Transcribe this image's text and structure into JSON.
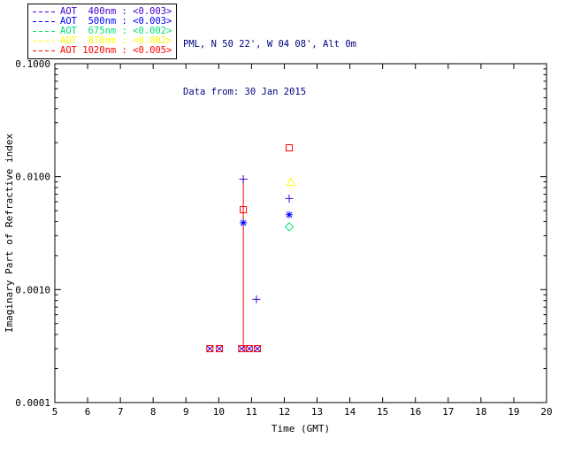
{
  "header": {
    "line1": "PML, N 50 22', W 04 08', Alt 0m",
    "line2": "Data from: 30 Jan 2015",
    "color": "#000080"
  },
  "legend": {
    "items": [
      {
        "label": "AOT  400nm : <0.003>",
        "color": "#4400CC"
      },
      {
        "label": "AOT  500nm : <0.003>",
        "color": "#0000FF"
      },
      {
        "label": "AOT  675nm : <0.002>",
        "color": "#00E070"
      },
      {
        "label": "AOT  870nm : <0.002>",
        "color": "#FFFF00"
      },
      {
        "label": "AOT 1020nm : <0.005>",
        "color": "#FF0000"
      }
    ]
  },
  "chart_data": {
    "type": "scatter",
    "title": "",
    "xlabel": "Time (GMT)",
    "ylabel": "Imaginary Part of Refractive index",
    "x_range": [
      5,
      20
    ],
    "y_range_log": [
      0.0001,
      0.1
    ],
    "x_ticks": [
      5,
      6,
      7,
      8,
      9,
      10,
      11,
      12,
      13,
      14,
      15,
      16,
      17,
      18,
      19,
      20
    ],
    "y_tick_values": [
      0.1,
      0.01,
      0.001,
      0.0001
    ],
    "y_tick_labels": [
      "0.1000",
      "0.0100",
      "0.0010",
      "0.0001"
    ],
    "y_scale": "log",
    "grid": false,
    "legend_position": "top-left-outside",
    "series": [
      {
        "name": "AOT 400nm",
        "color": "#4400CC",
        "symbol": "plus",
        "points": [
          [
            10.75,
            0.0095
          ],
          [
            11.15,
            0.00082
          ],
          [
            12.15,
            0.0064
          ]
        ]
      },
      {
        "name": "AOT 500nm",
        "color": "#0000FF",
        "symbol": "asterisk",
        "points": [
          [
            10.75,
            0.0039
          ],
          [
            12.15,
            0.0046
          ]
        ]
      },
      {
        "name": "AOT 675nm",
        "color": "#00E070",
        "symbol": "diamond",
        "points": [
          [
            12.15,
            0.0036
          ]
        ]
      },
      {
        "name": "AOT 870nm",
        "color": "#FFFF00",
        "symbol": "triangle",
        "points": [
          [
            12.2,
            0.0089
          ]
        ]
      },
      {
        "name": "AOT 1020nm",
        "color": "#FF0000",
        "symbol": "square",
        "points": [
          [
            10.75,
            0.0051
          ],
          [
            12.15,
            0.018
          ]
        ]
      }
    ],
    "floor_points": {
      "y": 0.0003,
      "x": [
        9.73,
        10.02,
        10.7,
        10.93,
        11.18
      ],
      "square_color": "#FF0000",
      "cross_color": "#4400CC"
    },
    "error_bar": {
      "x": 10.75,
      "y_min": 0.0003,
      "y_max": 0.0095,
      "color": "#FF0000"
    }
  }
}
